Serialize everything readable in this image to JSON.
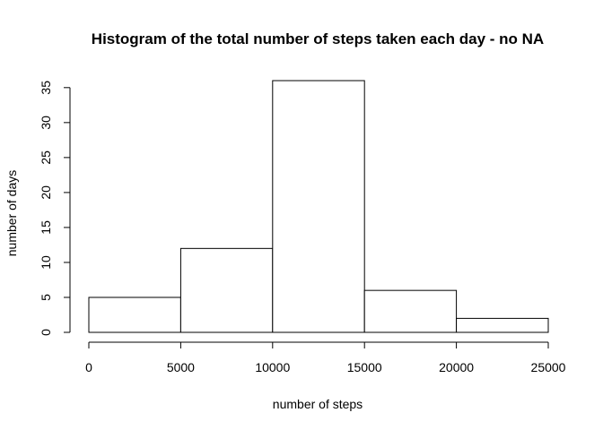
{
  "chart_data": {
    "type": "bar",
    "title": "Histogram of the total number of steps taken each day - no NA",
    "xlabel": "number of steps",
    "ylabel": "number of days",
    "bins": [
      {
        "from": 0,
        "to": 5000,
        "count": 5
      },
      {
        "from": 5000,
        "to": 10000,
        "count": 12
      },
      {
        "from": 10000,
        "to": 15000,
        "count": 36
      },
      {
        "from": 15000,
        "to": 20000,
        "count": 6
      },
      {
        "from": 20000,
        "to": 25000,
        "count": 2
      }
    ],
    "xlim": [
      0,
      25000
    ],
    "ylim": [
      0,
      36
    ],
    "xticks": [
      0,
      5000,
      10000,
      15000,
      20000,
      25000
    ],
    "xtick_labels": [
      "0",
      "5000",
      "10000",
      "15000",
      "20000",
      "25000"
    ],
    "yticks": [
      0,
      5,
      10,
      15,
      20,
      25,
      30,
      35
    ],
    "ytick_labels": [
      "0",
      "5",
      "10",
      "15",
      "20",
      "25",
      "30",
      "35"
    ],
    "grid": false,
    "legend": "none",
    "colors": {
      "bar_fill": "#ffffff",
      "bar_stroke": "#000000",
      "text": "#000000"
    }
  }
}
